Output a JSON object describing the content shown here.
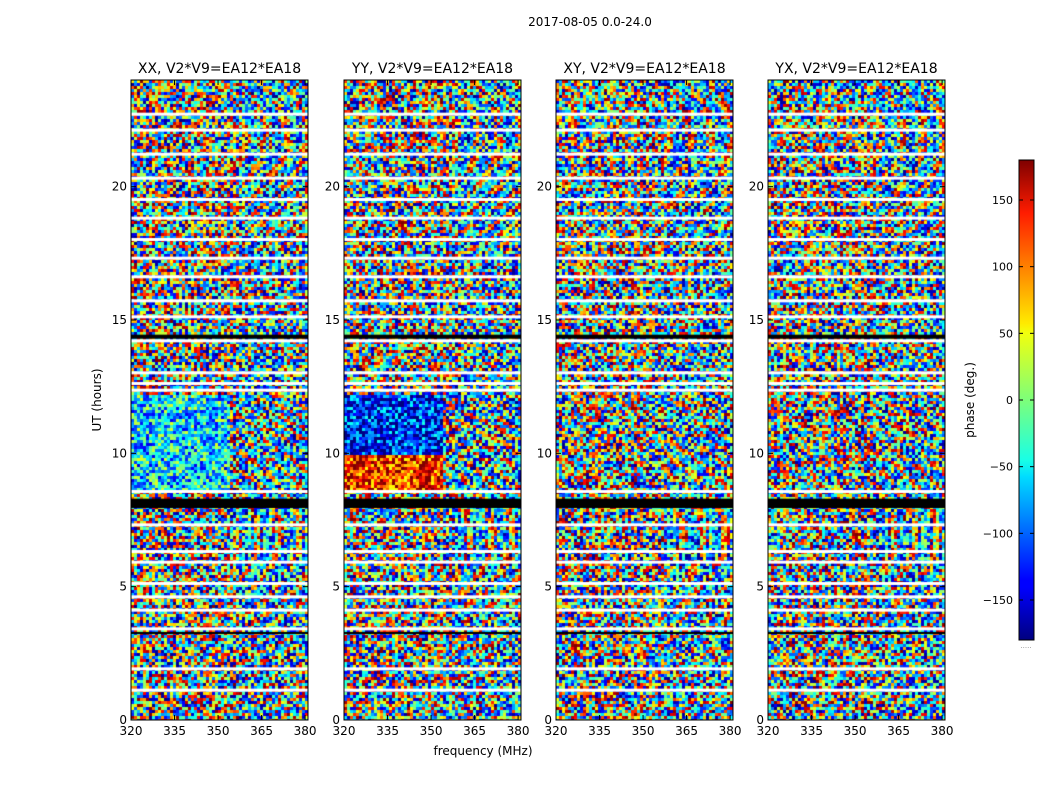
{
  "chart_data": {
    "type": "heatmap",
    "title": "2017-08-05 0.0-24.0",
    "xlabel": "frequency (MHz)",
    "ylabel": "UT (hours)",
    "xlim": [
      320,
      381
    ],
    "ylim": [
      0,
      24
    ],
    "x_ticks": [
      "320",
      "335",
      "350",
      "365",
      "380"
    ],
    "y_ticks": [
      "0",
      "5",
      "10",
      "15",
      "20"
    ],
    "panels": [
      {
        "title": "XX, V2*V9=EA12*EA18"
      },
      {
        "title": "YY, V2*V9=EA12*EA18"
      },
      {
        "title": "XY, V2*V9=EA12*EA18"
      },
      {
        "title": "YX, V2*V9=EA12*EA18"
      }
    ],
    "colorbar": {
      "label": "phase (deg.)",
      "range": [
        -180,
        180
      ],
      "ticks": [
        "150",
        "100",
        "50",
        "0",
        "−50",
        "−100",
        "−150"
      ],
      "footer": "....."
    }
  }
}
